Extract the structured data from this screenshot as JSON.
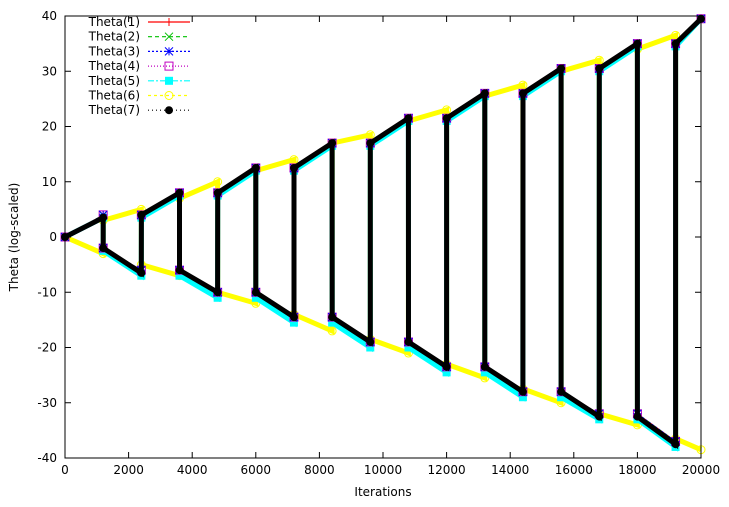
{
  "chart_data": {
    "type": "line",
    "title": "",
    "xlabel": "Iterations",
    "ylabel": "Theta (log-scaled)",
    "xlim": [
      0,
      20000
    ],
    "ylim": [
      -40,
      40
    ],
    "xticks": [
      0,
      2000,
      4000,
      6000,
      8000,
      10000,
      12000,
      14000,
      16000,
      18000,
      20000
    ],
    "yticks": [
      -40,
      -30,
      -20,
      -10,
      0,
      10,
      20,
      30,
      40
    ],
    "grid": false,
    "legend_position": "top-left",
    "colors": {
      "Theta(1)": "#ff0000",
      "Theta(2)": "#00c000",
      "Theta(3)": "#0000ff",
      "Theta(4)": "#c000c0",
      "Theta(5)": "#00ffff",
      "Theta(6)": "#ffff00",
      "Theta(7)": "#000000"
    },
    "markers": {
      "Theta(1)": "plus",
      "Theta(2)": "cross",
      "Theta(3)": "star",
      "Theta(4)": "open-square",
      "Theta(5)": "filled-square",
      "Theta(6)": "open-circle",
      "Theta(7)": "filled-circle"
    },
    "x": [
      0,
      1200,
      1201,
      2400,
      2401,
      3600,
      3601,
      4800,
      4801,
      6000,
      6001,
      7200,
      7201,
      8400,
      8401,
      9600,
      9601,
      10800,
      10801,
      12000,
      12001,
      13200,
      13201,
      14400,
      14401,
      15600,
      15601,
      16800,
      16801,
      18000,
      18001,
      19200,
      19201,
      20000
    ],
    "series": [
      {
        "name": "Theta(1)",
        "values": [
          0,
          4,
          -2,
          -6,
          4,
          8,
          -6,
          -10,
          8,
          12.5,
          -10,
          -14.5,
          12.5,
          17,
          -14.5,
          -19,
          17,
          21.5,
          -19,
          -23.5,
          21.5,
          26,
          -23.5,
          -28,
          26,
          30.5,
          -28,
          -32,
          30.5,
          35,
          -32,
          -37,
          35,
          39.5
        ]
      },
      {
        "name": "Theta(2)",
        "values": [
          0,
          4,
          -2,
          -6,
          4,
          8,
          -6,
          -10,
          8,
          12.5,
          -10,
          -14.5,
          12.5,
          17,
          -14.5,
          -19,
          17,
          21.5,
          -19,
          -23.5,
          21.5,
          26,
          -23.5,
          -28,
          26,
          30.5,
          -28,
          -32,
          30.5,
          35,
          -32,
          -37,
          35,
          39.5
        ]
      },
      {
        "name": "Theta(3)",
        "values": [
          0,
          4,
          -2,
          -6,
          4,
          8,
          -6,
          -10,
          8,
          12.5,
          -10,
          -14.5,
          12.5,
          17,
          -14.5,
          -19,
          17,
          21.5,
          -19,
          -23.5,
          21.5,
          26,
          -23.5,
          -28,
          26,
          30.5,
          -28,
          -32,
          30.5,
          35,
          -32,
          -37,
          35,
          39.5
        ]
      },
      {
        "name": "Theta(4)",
        "values": [
          0,
          4,
          -2,
          -6,
          4,
          8,
          -6,
          -10,
          8,
          12.5,
          -10,
          -14.5,
          12.5,
          17,
          -14.5,
          -19,
          17,
          21.5,
          -19,
          -23.5,
          21.5,
          26,
          -23.5,
          -28,
          26,
          30.5,
          -28,
          -32,
          30.5,
          35,
          -32,
          -37,
          35,
          39.5
        ]
      },
      {
        "name": "Theta(5)",
        "values": [
          0,
          3.5,
          -2.5,
          -7,
          3.5,
          7.5,
          -7,
          -11,
          7.5,
          12,
          -11,
          -15.5,
          12,
          16.5,
          -15.5,
          -20,
          16.5,
          21,
          -20,
          -24.5,
          21,
          25.5,
          -24.5,
          -29,
          25.5,
          30,
          -29,
          -33,
          30,
          34.5,
          -33,
          -38,
          34.5,
          39.5
        ]
      },
      {
        "name": "Theta(6)",
        "values": [
          0,
          -3,
          3,
          5,
          -5,
          -7,
          7,
          10,
          -10,
          -12,
          12,
          14,
          -14,
          -17,
          17,
          18.5,
          -18.5,
          -21,
          21,
          23,
          -23,
          -25.5,
          25.5,
          27.5,
          -27.5,
          -30,
          30,
          32,
          -32,
          -34,
          34,
          36.5,
          -36.5,
          -38.5
        ]
      },
      {
        "name": "Theta(7)",
        "values": [
          0,
          3.5,
          -2,
          -6.5,
          4,
          8,
          -6,
          -10,
          8,
          12.5,
          -10,
          -14.5,
          12.5,
          17,
          -14.5,
          -19,
          17,
          21.5,
          -19,
          -23.5,
          21.5,
          26,
          -23.5,
          -28,
          26,
          30.5,
          -28,
          -32.5,
          30.5,
          35,
          -32.5,
          -37.5,
          35,
          39.5
        ]
      }
    ]
  }
}
